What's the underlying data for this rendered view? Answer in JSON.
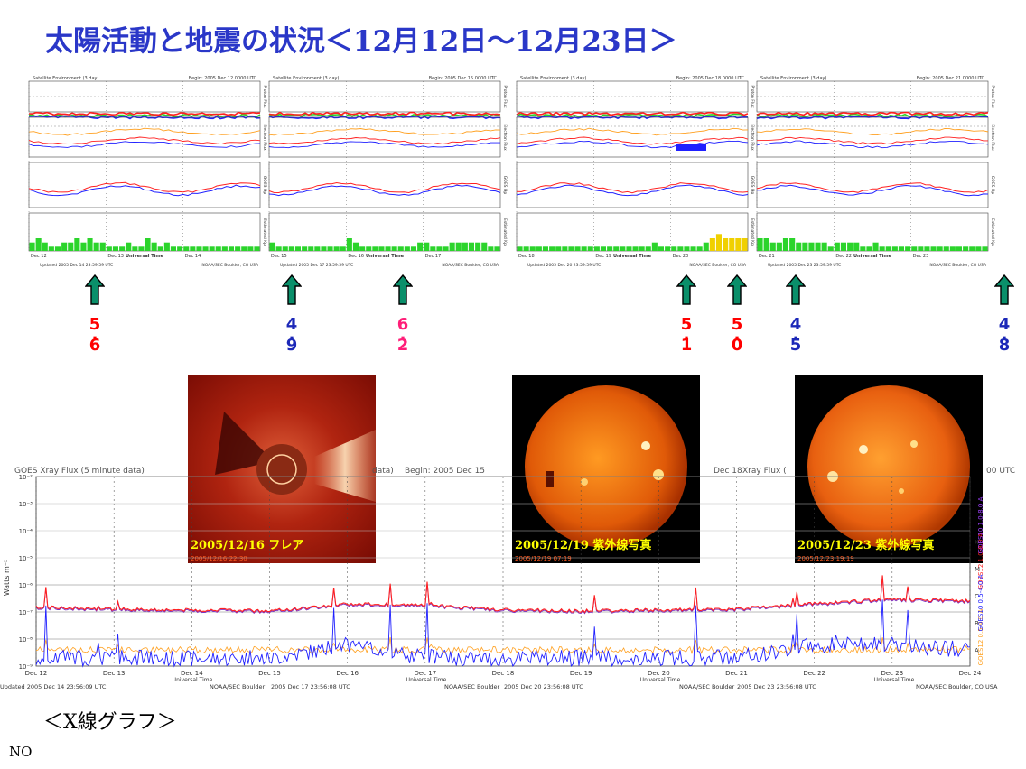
{
  "title": "太陽活動と地震の状況＜12月12日～12月23日＞",
  "section_label": "＜X線グラフ＞",
  "footer_text": "NO",
  "colors": {
    "title": "#2a37c8",
    "mag_red": "#ff0000",
    "mag_blue": "#1c28b8",
    "mag_pink": "#ff1e78",
    "arrow_fill": "#0a8f6a",
    "kp_green": "#2bd42b",
    "kp_yellow": "#f0d000",
    "series_red": "#ff2020",
    "series_blue": "#2020ff",
    "series_orange": "#ffa020"
  },
  "env_panels": [
    {
      "header_left": "Satellite Environment (3 day)",
      "header_right": "Begin: 2005 Dec 12 0000 UTC",
      "day_ticks": [
        "Dec 12",
        "Dec 13",
        "Dec 14"
      ],
      "center_label": "Universal Time",
      "footer_left": "Updated 2005 Dec 14 23:59:59 UTC",
      "footer_right": "NOAA/SEC Boulder, CO USA"
    },
    {
      "header_left": "Satellite Environment (3 day)",
      "header_right": "Begin: 2005 Dec 15 0000 UTC",
      "day_ticks": [
        "Dec 15",
        "Dec 16",
        "Dec 17"
      ],
      "center_label": "Universal Time",
      "footer_left": "Updated 2005 Dec 17 23:59:59 UTC",
      "footer_right": "NOAA/SEC Boulder, CO USA"
    },
    {
      "header_left": "Satellite Environment (3 day)",
      "header_right": "Begin: 2005 Dec 18 0000 UTC",
      "day_ticks": [
        "Dec 18",
        "Dec 19",
        "Dec 20"
      ],
      "center_label": "Universal Time",
      "footer_left": "Updated 2005 Dec 20 23:59:59 UTC",
      "footer_right": "NOAA/SEC Boulder, CO USA"
    },
    {
      "header_left": "Satellite Environment (3 day)",
      "header_right": "Begin: 2005 Dec 21 0000 UTC",
      "day_ticks": [
        "Dec 21",
        "Dec 22",
        "Dec 23"
      ],
      "center_label": "Universal Time",
      "footer_left": "Updated 2005 Dec 23 23:59:59 UTC",
      "footer_right": "NOAA/SEC Boulder, CO USA"
    }
  ],
  "env_side_labels": [
    "Proton Flux",
    "Electron Flux",
    "GOES Hp",
    "Estimated Kp"
  ],
  "earthquakes": [
    {
      "mag_int": "5",
      "mag_dec": "6",
      "color": "#ff0000"
    },
    {
      "mag_int": "4",
      "mag_dec": "9",
      "color": "#1c28b8"
    },
    {
      "mag_int": "6",
      "mag_dec": "2",
      "color": "#ff1e78"
    },
    {
      "mag_int": "5",
      "mag_dec": "1",
      "color": "#ff0000"
    },
    {
      "mag_int": "5",
      "mag_dec": "0",
      "color": "#ff0000"
    },
    {
      "mag_int": "4",
      "mag_dec": "5",
      "color": "#1c28b8"
    },
    {
      "mag_int": "4",
      "mag_dec": "8",
      "color": "#1c28b8"
    }
  ],
  "photos": [
    {
      "caption": "2005/12/16  フレア",
      "stamp": "2005/12/16 22:30"
    },
    {
      "caption": "2005/12/19  紫外線写真",
      "stamp": "2005/12/19 07:19"
    },
    {
      "caption": "2005/12/23  紫外線写真",
      "stamp": "2005/12/23 19:19"
    }
  ],
  "xray": {
    "header_left": "GOES Xray Flux (5 minute data)",
    "header_mid": "data)",
    "header_begin": "Begin: 2005 Dec 15",
    "header_dec": "Dec 18",
    "header_flux": "Xray Flux (",
    "header_utc": "00 UTC",
    "ylabel": "Watts m⁻²",
    "y_ticks": [
      "10⁻²",
      "10⁻³",
      "10⁻⁴",
      "10⁻⁵",
      "10⁻⁶",
      "10⁻⁷",
      "10⁻⁸",
      "10⁻⁹"
    ],
    "class_letters": [
      "X",
      "M",
      "C",
      "B",
      "A"
    ],
    "x_ticks": [
      "Dec 12",
      "Dec 13",
      "Dec 14",
      "Dec 15",
      "Dec 16",
      "Dec 17",
      "Dec 18",
      "Dec 19",
      "Dec 20",
      "Dec 21",
      "Dec 22",
      "Dec 23",
      "Dec 24"
    ],
    "xlabel": "Universal Time",
    "footers": [
      "Updated 2005 Dec 14 23:56:09 UTC",
      "NOAA/SEC Boulder",
      "2005 Dec 17 23:56:08 UTC",
      "NOAA/SEC Boulder",
      "2005 Dec 20 23:56:08 UTC",
      "NOAA/SEC Boulder",
      "2005 Dec 23 23:56:08 UTC",
      "NOAA/SEC Boulder, CO USA"
    ],
    "legend": [
      "GOES12 1.0-8.0 A",
      "GOES10 1.0-8.0 A",
      "GOES12 0.5-4.0 A",
      "GOES10 0.5-4.0 A"
    ]
  },
  "chart_data": [
    {
      "type": "bar",
      "title": "Estimated Kp",
      "categories": [
        "Dec 12",
        "Dec 13",
        "Dec 14",
        "Dec 15",
        "Dec 16",
        "Dec 17",
        "Dec 18",
        "Dec 19",
        "Dec 20",
        "Dec 21",
        "Dec 22",
        "Dec 23"
      ],
      "series": [
        {
          "name": "Estimated Kp",
          "values": [
            [
              2,
              3,
              2,
              1,
              1,
              2,
              2,
              3,
              2,
              3,
              2,
              2,
              1,
              1,
              1,
              2,
              1,
              1,
              3,
              2,
              1,
              2,
              1,
              1,
              1,
              1,
              1,
              1,
              1,
              1,
              1,
              1,
              1,
              1,
              1,
              1
            ],
            [
              2,
              1,
              1,
              1,
              1,
              1,
              1,
              1,
              1,
              1,
              1,
              1,
              3,
              2,
              1,
              1,
              1,
              1,
              1,
              1,
              1,
              1,
              1,
              2,
              2,
              1,
              1,
              1,
              2,
              2,
              2,
              2,
              2,
              2,
              1,
              1
            ],
            [
              1,
              1,
              1,
              1,
              1,
              1,
              1,
              1,
              1,
              1,
              1,
              1,
              1,
              1,
              1,
              1,
              1,
              1,
              1,
              1,
              1,
              2,
              1,
              1,
              1,
              1,
              1,
              1,
              1,
              2,
              3,
              4,
              3,
              3,
              3,
              3
            ],
            [
              3,
              3,
              2,
              2,
              3,
              3,
              2,
              2,
              2,
              2,
              2,
              1,
              2,
              2,
              2,
              2,
              1,
              1,
              2,
              1,
              1,
              1,
              1,
              1,
              1,
              1,
              1,
              1,
              1,
              1,
              1,
              1,
              1,
              1,
              1,
              1
            ]
          ]
        }
      ],
      "ylim": [
        0,
        9
      ]
    },
    {
      "type": "line",
      "title": "GOES Xray Flux (5 minute data)",
      "xlabel": "Universal Time",
      "ylabel": "Watts m⁻²",
      "categories": [
        "Dec 12",
        "Dec 13",
        "Dec 14",
        "Dec 15",
        "Dec 16",
        "Dec 17",
        "Dec 18",
        "Dec 19",
        "Dec 20",
        "Dec 21",
        "Dec 22",
        "Dec 23",
        "Dec 24"
      ],
      "series": [
        {
          "name": "GOES12 1.0-8.0 A",
          "values": [
            1.5e-07,
            1.3e-07,
            1.2e-07,
            1.1e-07,
            2e-07,
            1.8e-07,
            1.2e-07,
            1.1e-07,
            1.2e-07,
            1.3e-07,
            2e-07,
            3e-07,
            2.5e-07
          ]
        },
        {
          "name": "GOES12 0.5-4.0 A",
          "values": [
            1e-09,
            1e-09,
            1e-09,
            1e-09,
            3e-09,
            1e-09,
            1e-09,
            1e-09,
            1e-09,
            1e-09,
            3e-09,
            3e-09,
            2e-09
          ]
        }
      ],
      "ylim": [
        1e-09,
        0.01
      ],
      "log_y": true
    }
  ]
}
